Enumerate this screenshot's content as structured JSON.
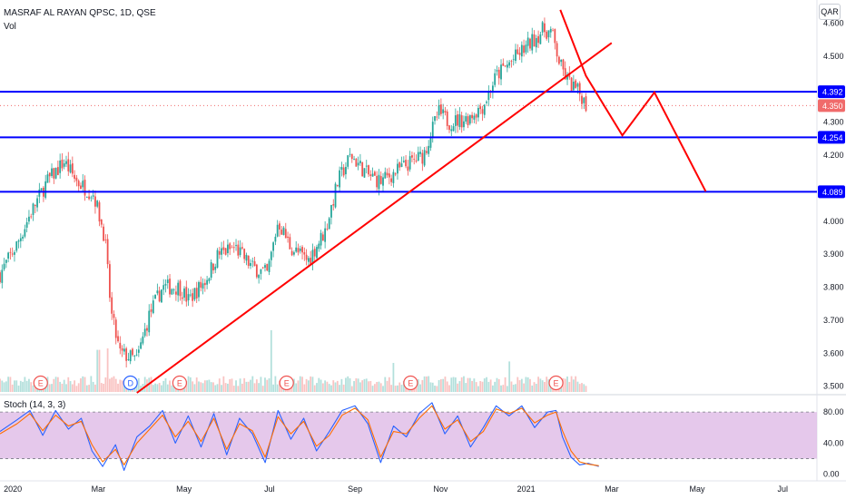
{
  "header": {
    "symbol": "MASRAF AL RAYAN QPSC, 1D, QSE",
    "volume_label": "Vol",
    "currency_badge": "QAR",
    "stoch_label": "Stoch (14, 3, 3)"
  },
  "colors": {
    "up": "#26a69a",
    "down": "#ef5350",
    "level_line": "#0000ff",
    "trend_line": "#ff0000",
    "stoch_band": "#e1bee7",
    "stoch_k": "#2962ff",
    "stoch_d": "#ff6d00",
    "last_price": "#f06b6b"
  },
  "chart_data": [
    {
      "type": "candlestick",
      "title": "MASRAF AL RAYAN QPSC, 1D, QSE",
      "timeframe": "1D",
      "price_axis": {
        "ylim": [
          3.48,
          4.67
        ],
        "ticks": [
          "4.600",
          "4.500",
          "4.300",
          "4.200",
          "4.000",
          "3.900",
          "3.800",
          "3.700",
          "3.600",
          "3.500"
        ]
      },
      "time_axis": {
        "labels": [
          {
            "label": "2020",
            "t": 0
          },
          {
            "label": "Mar",
            "t": 2
          },
          {
            "label": "May",
            "t": 4
          },
          {
            "label": "Jul",
            "t": 6
          },
          {
            "label": "Sep",
            "t": 8
          },
          {
            "label": "Nov",
            "t": 10
          },
          {
            "label": "2021",
            "t": 12
          },
          {
            "label": "Mar",
            "t": 14
          },
          {
            "label": "May",
            "t": 16
          },
          {
            "label": "Jul",
            "t": 18
          }
        ],
        "xlim": [
          -0.3,
          18.8
        ]
      },
      "price_path": [
        [
          -0.3,
          3.84
        ],
        [
          0.1,
          3.93
        ],
        [
          0.4,
          4.02
        ],
        [
          0.8,
          4.12
        ],
        [
          1.2,
          4.18
        ],
        [
          1.5,
          4.12
        ],
        [
          1.9,
          4.08
        ],
        [
          2.15,
          3.95
        ],
        [
          2.3,
          3.72
        ],
        [
          2.5,
          3.6
        ],
        [
          2.9,
          3.58
        ],
        [
          3.2,
          3.72
        ],
        [
          3.5,
          3.8
        ],
        [
          3.9,
          3.8
        ],
        [
          4.1,
          3.76
        ],
        [
          4.5,
          3.82
        ],
        [
          4.8,
          3.9
        ],
        [
          5.2,
          3.92
        ],
        [
          5.6,
          3.86
        ],
        [
          5.95,
          3.84
        ],
        [
          6.2,
          4.0
        ],
        [
          6.5,
          3.92
        ],
        [
          6.9,
          3.88
        ],
        [
          7.3,
          3.97
        ],
        [
          7.6,
          4.12
        ],
        [
          7.9,
          4.2
        ],
        [
          8.3,
          4.14
        ],
        [
          8.6,
          4.12
        ],
        [
          9.2,
          4.17
        ],
        [
          9.6,
          4.2
        ],
        [
          9.95,
          4.33
        ],
        [
          10.2,
          4.3
        ],
        [
          10.6,
          4.31
        ],
        [
          11.0,
          4.35
        ],
        [
          11.3,
          4.44
        ],
        [
          11.7,
          4.49
        ],
        [
          12.1,
          4.54
        ],
        [
          12.4,
          4.58
        ],
        [
          12.6,
          4.57
        ],
        [
          12.8,
          4.47
        ],
        [
          13.0,
          4.42
        ],
        [
          13.3,
          4.38
        ],
        [
          13.4,
          4.35
        ]
      ],
      "volume_spikes": [
        [
          2.0,
          0.58
        ],
        [
          2.2,
          0.6
        ],
        [
          6.05,
          0.85
        ],
        [
          8.9,
          0.4
        ],
        [
          11.6,
          0.42
        ]
      ],
      "earnings_markers": [
        {
          "label": "E",
          "t": 0.65
        },
        {
          "label": "D",
          "t": 2.75
        },
        {
          "label": "E",
          "t": 3.9
        },
        {
          "label": "E",
          "t": 6.4
        },
        {
          "label": "E",
          "t": 9.3
        },
        {
          "label": "E",
          "t": 12.7
        }
      ],
      "levels": [
        {
          "label": "4.392",
          "value": 4.392
        },
        {
          "label": "4.254",
          "value": 4.254
        },
        {
          "label": "4.089",
          "value": 4.089
        }
      ],
      "last_price": {
        "label": "4.350",
        "value": 4.35
      },
      "annotations": {
        "trend_line": [
          [
            2.9,
            3.48
          ],
          [
            14.0,
            4.54
          ]
        ],
        "projection_path": [
          [
            12.8,
            4.64
          ],
          [
            13.4,
            4.44
          ],
          [
            14.25,
            4.26
          ],
          [
            15.0,
            4.39
          ],
          [
            16.2,
            4.09
          ]
        ]
      }
    },
    {
      "type": "line",
      "title": "Stoch (14, 3, 3)",
      "ylim": [
        -5,
        100
      ],
      "ticks": [
        "80.00",
        "40.00",
        "0.00"
      ],
      "band": [
        20,
        80
      ],
      "series": [
        {
          "key": "k",
          "points": [
            [
              -0.3,
              55
            ],
            [
              0.1,
              70
            ],
            [
              0.4,
              82
            ],
            [
              0.7,
              50
            ],
            [
              1.0,
              82
            ],
            [
              1.3,
              58
            ],
            [
              1.6,
              72
            ],
            [
              1.85,
              30
            ],
            [
              2.1,
              10
            ],
            [
              2.4,
              38
            ],
            [
              2.6,
              5
            ],
            [
              2.9,
              48
            ],
            [
              3.2,
              62
            ],
            [
              3.5,
              82
            ],
            [
              3.8,
              40
            ],
            [
              4.1,
              75
            ],
            [
              4.4,
              35
            ],
            [
              4.7,
              78
            ],
            [
              5.0,
              25
            ],
            [
              5.3,
              72
            ],
            [
              5.6,
              52
            ],
            [
              5.9,
              15
            ],
            [
              6.2,
              82
            ],
            [
              6.5,
              45
            ],
            [
              6.8,
              72
            ],
            [
              7.1,
              30
            ],
            [
              7.4,
              55
            ],
            [
              7.7,
              82
            ],
            [
              8.0,
              88
            ],
            [
              8.3,
              65
            ],
            [
              8.6,
              15
            ],
            [
              8.9,
              62
            ],
            [
              9.2,
              48
            ],
            [
              9.5,
              78
            ],
            [
              9.8,
              92
            ],
            [
              10.1,
              52
            ],
            [
              10.4,
              75
            ],
            [
              10.7,
              35
            ],
            [
              11.0,
              60
            ],
            [
              11.3,
              88
            ],
            [
              11.6,
              75
            ],
            [
              11.9,
              88
            ],
            [
              12.2,
              60
            ],
            [
              12.5,
              80
            ],
            [
              12.7,
              82
            ],
            [
              12.85,
              48
            ],
            [
              13.05,
              22
            ],
            [
              13.25,
              12
            ],
            [
              13.45,
              14
            ],
            [
              13.7,
              10
            ]
          ]
        },
        {
          "key": "d",
          "points": [
            [
              -0.3,
              52
            ],
            [
              0.1,
              65
            ],
            [
              0.4,
              78
            ],
            [
              0.7,
              56
            ],
            [
              1.0,
              76
            ],
            [
              1.3,
              62
            ],
            [
              1.6,
              68
            ],
            [
              1.85,
              38
            ],
            [
              2.1,
              16
            ],
            [
              2.4,
              32
            ],
            [
              2.6,
              12
            ],
            [
              2.9,
              40
            ],
            [
              3.2,
              58
            ],
            [
              3.5,
              76
            ],
            [
              3.8,
              48
            ],
            [
              4.1,
              68
            ],
            [
              4.4,
              42
            ],
            [
              4.7,
              72
            ],
            [
              5.0,
              32
            ],
            [
              5.3,
              65
            ],
            [
              5.6,
              56
            ],
            [
              5.9,
              22
            ],
            [
              6.2,
              74
            ],
            [
              6.5,
              52
            ],
            [
              6.8,
              68
            ],
            [
              7.1,
              36
            ],
            [
              7.4,
              50
            ],
            [
              7.7,
              76
            ],
            [
              8.0,
              85
            ],
            [
              8.3,
              70
            ],
            [
              8.6,
              22
            ],
            [
              8.9,
              55
            ],
            [
              9.2,
              52
            ],
            [
              9.5,
              72
            ],
            [
              9.8,
              88
            ],
            [
              10.1,
              58
            ],
            [
              10.4,
              70
            ],
            [
              10.7,
              42
            ],
            [
              11.0,
              55
            ],
            [
              11.3,
              84
            ],
            [
              11.6,
              78
            ],
            [
              11.9,
              85
            ],
            [
              12.2,
              66
            ],
            [
              12.5,
              76
            ],
            [
              12.7,
              80
            ],
            [
              12.85,
              56
            ],
            [
              13.05,
              30
            ],
            [
              13.25,
              16
            ],
            [
              13.45,
              13
            ],
            [
              13.7,
              11
            ]
          ]
        }
      ]
    }
  ]
}
